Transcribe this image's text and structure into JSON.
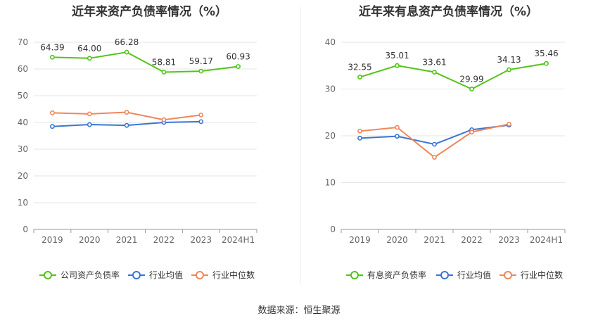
{
  "source": "数据来源：恒生聚源",
  "chart_data": [
    {
      "type": "line",
      "title": "近年来资产负债率情况（%）",
      "categories": [
        "2019",
        "2020",
        "2021",
        "2022",
        "2023",
        "2024H1"
      ],
      "ylim": [
        0,
        70
      ],
      "yticks": [
        0,
        10,
        20,
        30,
        40,
        50,
        60,
        70
      ],
      "grid": true,
      "legend_position": "bottom",
      "series": [
        {
          "name": "公司资产负债率",
          "color": "#52c41a",
          "values": [
            64.39,
            64.0,
            66.28,
            58.81,
            59.17,
            60.93
          ],
          "labels": [
            "64.39",
            "64.00",
            "66.28",
            "58.81",
            "59.17",
            "60.93"
          ]
        },
        {
          "name": "行业均值",
          "color": "#3a75d6",
          "values": [
            38.5,
            39.2,
            38.9,
            40.0,
            40.3,
            null
          ]
        },
        {
          "name": "行业中位数",
          "color": "#f0865c",
          "values": [
            43.6,
            43.2,
            43.8,
            41.0,
            42.8,
            null
          ]
        }
      ]
    },
    {
      "type": "line",
      "title": "近年来有息资产负债率情况（%）",
      "categories": [
        "2019",
        "2020",
        "2021",
        "2022",
        "2023",
        "2024H1"
      ],
      "ylim": [
        0,
        40
      ],
      "yticks": [
        0,
        10,
        20,
        30,
        40
      ],
      "grid": true,
      "legend_position": "bottom",
      "series": [
        {
          "name": "有息资产负债率",
          "color": "#52c41a",
          "values": [
            32.55,
            35.01,
            33.61,
            29.99,
            34.13,
            35.46
          ],
          "labels": [
            "32.55",
            "35.01",
            "33.61",
            "29.99",
            "34.13",
            "35.46"
          ]
        },
        {
          "name": "行业均值",
          "color": "#3a75d6",
          "values": [
            19.5,
            19.9,
            18.2,
            21.3,
            22.3,
            null
          ]
        },
        {
          "name": "行业中位数",
          "color": "#f0865c",
          "values": [
            21.0,
            21.8,
            15.4,
            20.8,
            22.5,
            null
          ]
        }
      ]
    }
  ]
}
